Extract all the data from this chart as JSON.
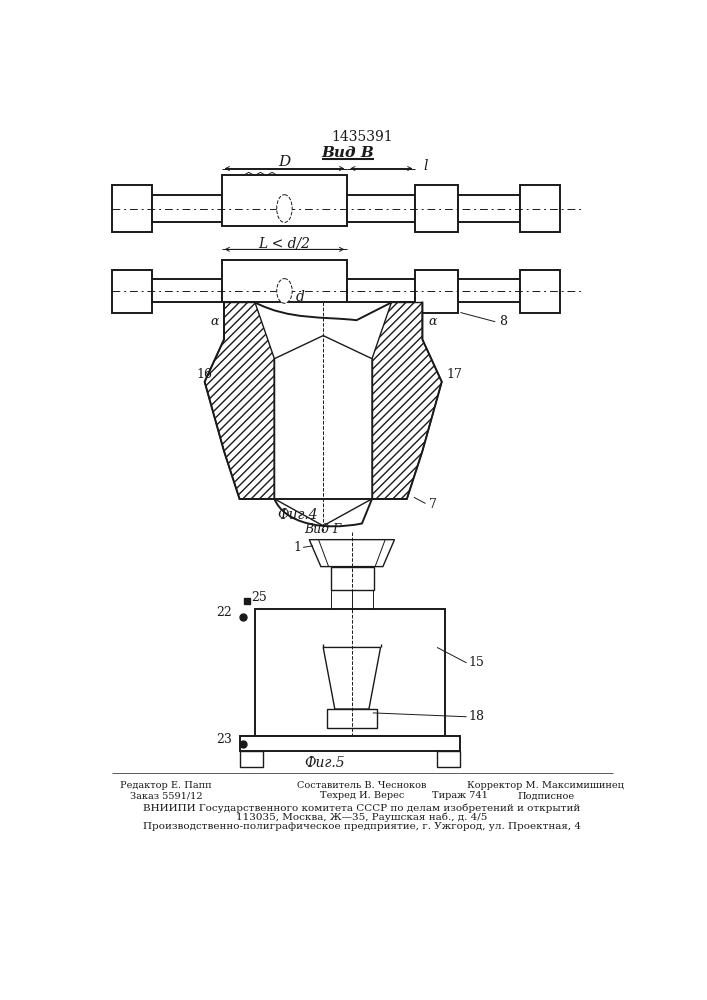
{
  "patent_number": "1435391",
  "vid_b": "Вид B",
  "caption_fig4": "Фиг.4",
  "vid_g": "Вид Г",
  "caption_fig5": "Фиг.5",
  "bg_color": "#ffffff",
  "line_color": "#1a1a1a",
  "labels": {
    "l": "l",
    "D": "D",
    "d": "d",
    "Lhalf": "L < d/2",
    "alpha": "α",
    "num_8": "8",
    "num_16": "16",
    "num_17": "17",
    "num_7": "7",
    "num_1": "1",
    "num_15": "15",
    "num_18": "18",
    "num_22": "22",
    "num_23": "23",
    "num_25": "25"
  },
  "footer": {
    "editor": "Редактор Е. Папп",
    "composer": "Составитель В. Чесноков",
    "corrector": "Корректор М. Максимишинец",
    "order": "Заказ 5591/12",
    "techred": "Техред И. Верес",
    "circulation": "Тираж 741",
    "signed": "Подписное",
    "vniiipi": "ВНИИПИ Государственного комитета СССР по делам изобретений и открытий",
    "address1": "113035, Москва, Ж—35, Раушская наб., д. 4/5",
    "address2": "Производственно-полиграфическое предприятие, г. Ужгород, ул. Проектная, 4"
  }
}
